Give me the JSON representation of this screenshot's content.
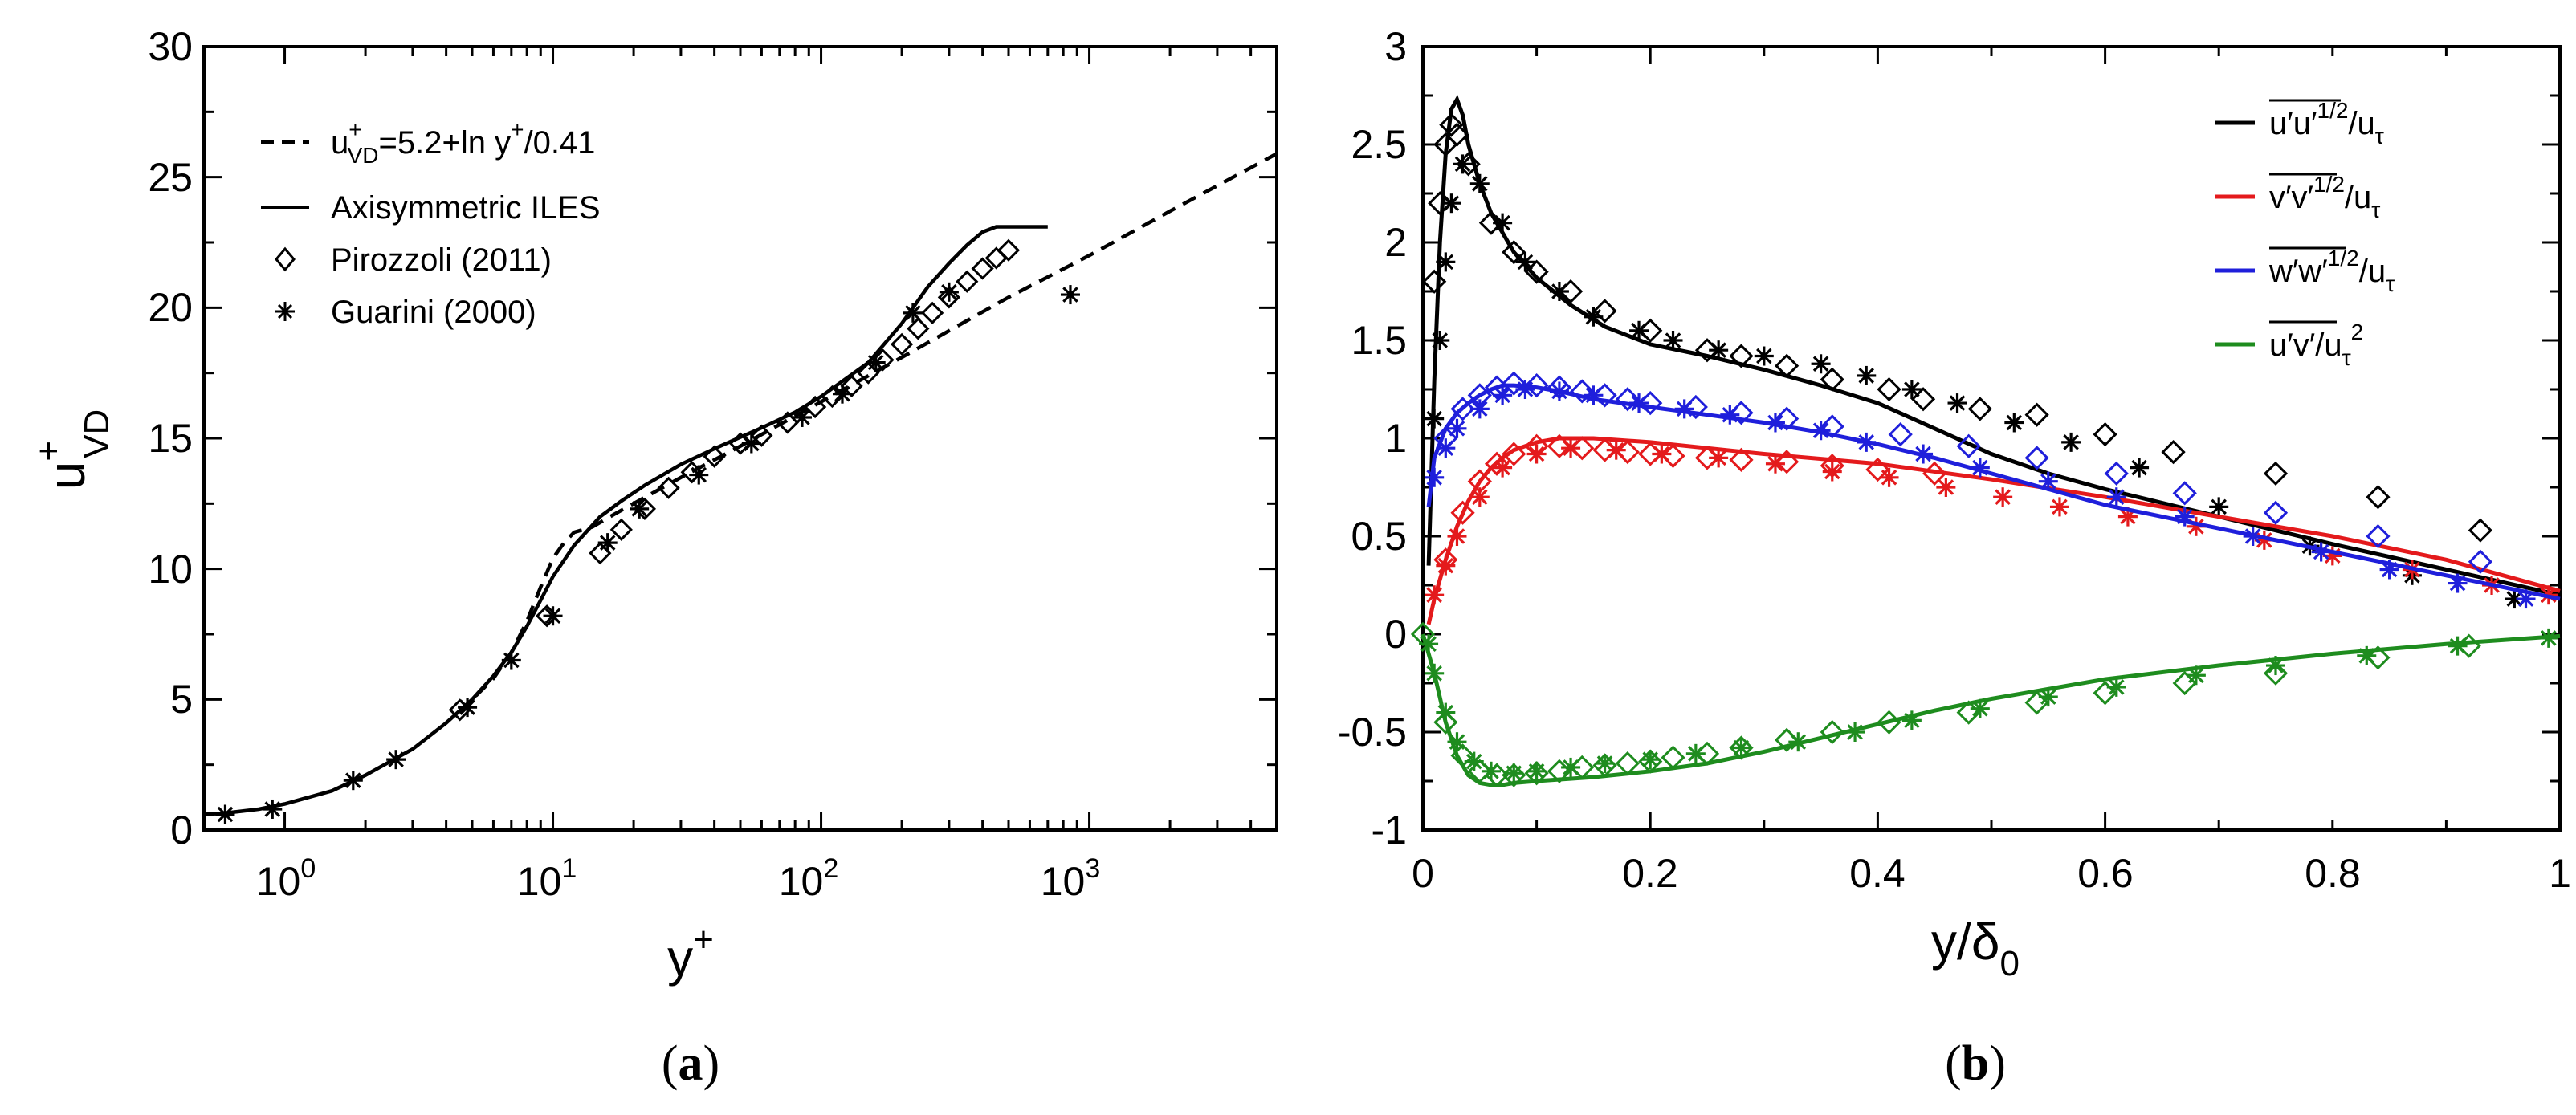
{
  "chart_data": [
    {
      "type": "scatter",
      "panel_label": "a",
      "xscale": "log",
      "xlim": [
        0.5,
        5000
      ],
      "ylim": [
        0,
        30
      ],
      "xlabel": "y",
      "xlabel_sup": "+",
      "ylabel": "u",
      "ylabel_sup": "+",
      "ylabel_sub": "VD",
      "xticks": [
        {
          "value": 1,
          "base": "10",
          "exp": "0"
        },
        {
          "value": 10,
          "base": "10",
          "exp": "1"
        },
        {
          "value": 100,
          "base": "10",
          "exp": "2"
        },
        {
          "value": 1000,
          "base": "10",
          "exp": "3"
        }
      ],
      "yticks": [
        "0",
        "5",
        "10",
        "15",
        "20",
        "25",
        "30"
      ],
      "legend_position": "top-left",
      "legend": [
        {
          "style": "dashed",
          "text_parts": [
            "u",
            "+",
            "VD",
            "=5.2+ln y",
            "+",
            "/0.41"
          ]
        },
        {
          "style": "solid",
          "text": "Axisymmetric ILES"
        },
        {
          "style": "diamond",
          "text": "Pirozzoli (2011)"
        },
        {
          "style": "star",
          "text": "Guarini (2000)"
        }
      ],
      "series": [
        {
          "name": "log-law composite",
          "style": "dashed",
          "x": [
            4.5,
            5,
            6,
            7,
            8,
            9,
            10,
            11,
            12,
            14,
            17,
            20,
            30,
            50,
            100,
            200,
            500,
            1000,
            2000,
            5000
          ],
          "y": [
            4.5,
            5.0,
            5.8,
            6.8,
            8.0,
            9.3,
            10.4,
            11.0,
            11.4,
            11.6,
            12.1,
            12.5,
            13.5,
            14.7,
            16.4,
            18.1,
            20.4,
            22.0,
            23.7,
            25.9
          ]
        },
        {
          "name": "Axisymmetric ILES",
          "style": "solid",
          "x": [
            0.5,
            0.6,
            0.8,
            1,
            1.5,
            2,
            3,
            4,
            5,
            6,
            7,
            8,
            9,
            10,
            12,
            15,
            18,
            22,
            30,
            40,
            60,
            80,
            100,
            150,
            200,
            250,
            300,
            350,
            400,
            450,
            700
          ],
          "y": [
            0.6,
            0.65,
            0.8,
            1.0,
            1.5,
            2.1,
            3.1,
            4.1,
            5.0,
            5.9,
            6.8,
            7.8,
            8.8,
            9.7,
            10.9,
            12.0,
            12.6,
            13.2,
            14.0,
            14.6,
            15.4,
            16.0,
            16.6,
            17.9,
            19.4,
            20.8,
            21.7,
            22.4,
            22.9,
            23.1,
            23.1
          ]
        },
        {
          "name": "Pirozzoli (2011)",
          "style": "diamond",
          "x": [
            4.5,
            9.5,
            15,
            18,
            22,
            27,
            33,
            40,
            50,
            60,
            75,
            95,
            110,
            130,
            150,
            170,
            200,
            230,
            260,
            300,
            350,
            400,
            450,
            500
          ],
          "y": [
            4.6,
            8.2,
            10.6,
            11.5,
            12.3,
            13.1,
            13.7,
            14.3,
            14.8,
            15.1,
            15.6,
            16.2,
            16.6,
            17.0,
            17.5,
            18.0,
            18.6,
            19.2,
            19.8,
            20.4,
            21.0,
            21.5,
            21.9,
            22.2
          ]
        },
        {
          "name": "Guarini (2000)",
          "style": "star",
          "x": [
            0.6,
            0.9,
            1.8,
            2.6,
            4.8,
            7,
            10,
            16,
            21,
            35,
            55,
            85,
            120,
            160,
            220,
            300,
            850
          ],
          "y": [
            0.6,
            0.8,
            1.9,
            2.7,
            4.7,
            6.5,
            8.2,
            11.0,
            12.3,
            13.6,
            14.8,
            15.8,
            16.7,
            17.9,
            19.8,
            20.6,
            20.5
          ]
        }
      ]
    },
    {
      "type": "scatter",
      "panel_label": "b",
      "xlim": [
        0,
        1
      ],
      "ylim": [
        -1,
        3
      ],
      "xlabel": "y/δ",
      "xlabel_sub": "0",
      "xticks": [
        "0",
        "0.2",
        "0.4",
        "0.6",
        "0.8",
        "1"
      ],
      "yticks": [
        "-1",
        "-0.5",
        "0",
        "0.5",
        "1",
        "1.5",
        "2",
        "2.5",
        "3"
      ],
      "legend_position": "top-right",
      "legend": [
        {
          "color": "#000000",
          "over": "u′u′",
          "sup": "1/2",
          "tail": "/u",
          "sub": "τ"
        },
        {
          "color": "#e41a1c",
          "over": "v′v′",
          "sup": "1/2",
          "tail": "/u",
          "sub": "τ"
        },
        {
          "color": "#1f1fdb",
          "over": "w′w′",
          "sup": "1/2",
          "tail": "/u",
          "sub": "τ"
        },
        {
          "color": "#1e8c1e",
          "over": "u′v′",
          "sup": "2",
          "tail": "/u",
          "sub": "τ"
        }
      ],
      "series": [
        {
          "name": "u_rms",
          "color": "#000000",
          "line_x": [
            0.005,
            0.01,
            0.015,
            0.02,
            0.025,
            0.03,
            0.035,
            0.04,
            0.05,
            0.06,
            0.08,
            0.1,
            0.13,
            0.16,
            0.2,
            0.25,
            0.3,
            0.35,
            0.4,
            0.45,
            0.5,
            0.55,
            0.6,
            0.7,
            0.8,
            0.9,
            1.0
          ],
          "line_y": [
            0.35,
            1.3,
            2.0,
            2.45,
            2.68,
            2.73,
            2.65,
            2.5,
            2.3,
            2.15,
            1.95,
            1.82,
            1.68,
            1.57,
            1.48,
            1.42,
            1.35,
            1.27,
            1.18,
            1.05,
            0.92,
            0.82,
            0.74,
            0.6,
            0.46,
            0.33,
            0.2
          ],
          "diamonds_x": [
            0.01,
            0.015,
            0.02,
            0.025,
            0.03,
            0.04,
            0.06,
            0.08,
            0.1,
            0.13,
            0.16,
            0.2,
            0.25,
            0.28,
            0.32,
            0.36,
            0.41,
            0.44,
            0.49,
            0.54,
            0.6,
            0.66,
            0.75,
            0.84,
            0.93
          ],
          "diamonds_y": [
            1.8,
            2.2,
            2.5,
            2.6,
            2.55,
            2.4,
            2.1,
            1.95,
            1.85,
            1.75,
            1.65,
            1.55,
            1.45,
            1.42,
            1.37,
            1.3,
            1.25,
            1.2,
            1.15,
            1.12,
            1.02,
            0.93,
            0.82,
            0.7,
            0.53
          ],
          "stars_x": [
            0.01,
            0.015,
            0.02,
            0.025,
            0.035,
            0.05,
            0.07,
            0.09,
            0.12,
            0.15,
            0.19,
            0.22,
            0.26,
            0.3,
            0.35,
            0.39,
            0.43,
            0.47,
            0.52,
            0.57,
            0.63,
            0.7,
            0.78,
            0.87,
            0.96
          ],
          "stars_y": [
            1.1,
            1.5,
            1.9,
            2.2,
            2.4,
            2.3,
            2.1,
            1.9,
            1.75,
            1.62,
            1.55,
            1.5,
            1.45,
            1.42,
            1.38,
            1.32,
            1.25,
            1.18,
            1.08,
            0.98,
            0.85,
            0.65,
            0.45,
            0.3,
            0.18
          ]
        },
        {
          "name": "v_rms",
          "color": "#e41a1c",
          "line_x": [
            0.005,
            0.01,
            0.02,
            0.03,
            0.04,
            0.05,
            0.06,
            0.07,
            0.08,
            0.1,
            0.12,
            0.15,
            0.2,
            0.25,
            0.3,
            0.4,
            0.5,
            0.6,
            0.7,
            0.8,
            0.9,
            1.0
          ],
          "line_y": [
            0.05,
            0.18,
            0.38,
            0.55,
            0.68,
            0.78,
            0.85,
            0.9,
            0.94,
            0.98,
            1.0,
            1.0,
            0.98,
            0.95,
            0.92,
            0.87,
            0.79,
            0.7,
            0.6,
            0.5,
            0.38,
            0.22
          ],
          "diamonds_x": [
            0.02,
            0.035,
            0.05,
            0.065,
            0.08,
            0.1,
            0.12,
            0.14,
            0.16,
            0.18,
            0.2,
            0.22,
            0.25,
            0.28,
            0.32,
            0.36,
            0.4,
            0.45
          ],
          "diamonds_y": [
            0.38,
            0.62,
            0.78,
            0.87,
            0.92,
            0.96,
            0.96,
            0.95,
            0.94,
            0.93,
            0.92,
            0.91,
            0.9,
            0.89,
            0.88,
            0.86,
            0.84,
            0.82
          ],
          "stars_x": [
            0.01,
            0.02,
            0.03,
            0.05,
            0.07,
            0.1,
            0.13,
            0.17,
            0.21,
            0.26,
            0.31,
            0.36,
            0.41,
            0.46,
            0.51,
            0.56,
            0.62,
            0.68,
            0.74,
            0.8,
            0.87,
            0.94,
            0.99
          ],
          "stars_y": [
            0.2,
            0.35,
            0.5,
            0.7,
            0.85,
            0.92,
            0.95,
            0.94,
            0.92,
            0.9,
            0.87,
            0.83,
            0.8,
            0.75,
            0.7,
            0.65,
            0.6,
            0.55,
            0.48,
            0.4,
            0.33,
            0.25,
            0.2
          ]
        },
        {
          "name": "w_rms",
          "color": "#1f1fdb",
          "line_x": [
            0.005,
            0.01,
            0.02,
            0.03,
            0.04,
            0.05,
            0.06,
            0.07,
            0.08,
            0.1,
            0.12,
            0.15,
            0.2,
            0.25,
            0.3,
            0.35,
            0.4,
            0.45,
            0.5,
            0.55,
            0.6,
            0.7,
            0.8,
            0.9,
            1.0
          ],
          "line_y": [
            0.65,
            0.9,
            1.05,
            1.13,
            1.18,
            1.22,
            1.25,
            1.27,
            1.27,
            1.26,
            1.24,
            1.2,
            1.16,
            1.12,
            1.08,
            1.03,
            0.97,
            0.9,
            0.82,
            0.74,
            0.66,
            0.54,
            0.42,
            0.3,
            0.18
          ],
          "diamonds_x": [
            0.02,
            0.035,
            0.05,
            0.065,
            0.08,
            0.1,
            0.12,
            0.14,
            0.16,
            0.18,
            0.2,
            0.24,
            0.28,
            0.32,
            0.36,
            0.42,
            0.48,
            0.54,
            0.61,
            0.67,
            0.75,
            0.84,
            0.93
          ],
          "diamonds_y": [
            1.0,
            1.15,
            1.22,
            1.26,
            1.28,
            1.27,
            1.26,
            1.24,
            1.22,
            1.2,
            1.18,
            1.16,
            1.13,
            1.1,
            1.06,
            1.02,
            0.96,
            0.9,
            0.82,
            0.72,
            0.62,
            0.5,
            0.37
          ],
          "stars_x": [
            0.01,
            0.02,
            0.03,
            0.05,
            0.07,
            0.09,
            0.12,
            0.15,
            0.19,
            0.23,
            0.27,
            0.31,
            0.35,
            0.39,
            0.44,
            0.49,
            0.55,
            0.61,
            0.67,
            0.73,
            0.79,
            0.85,
            0.91,
            0.97
          ],
          "stars_y": [
            0.8,
            0.95,
            1.05,
            1.15,
            1.22,
            1.25,
            1.24,
            1.22,
            1.18,
            1.15,
            1.12,
            1.08,
            1.04,
            0.98,
            0.92,
            0.85,
            0.78,
            0.7,
            0.6,
            0.5,
            0.42,
            0.33,
            0.26,
            0.18
          ]
        },
        {
          "name": "uv",
          "color": "#1e8c1e",
          "line_x": [
            0.0,
            0.01,
            0.02,
            0.03,
            0.04,
            0.05,
            0.06,
            0.07,
            0.08,
            0.1,
            0.15,
            0.2,
            0.25,
            0.3,
            0.35,
            0.4,
            0.45,
            0.5,
            0.6,
            0.7,
            0.8,
            0.9,
            1.0
          ],
          "line_y": [
            0.0,
            -0.2,
            -0.45,
            -0.62,
            -0.72,
            -0.76,
            -0.77,
            -0.77,
            -0.76,
            -0.75,
            -0.73,
            -0.7,
            -0.66,
            -0.6,
            -0.53,
            -0.46,
            -0.39,
            -0.33,
            -0.23,
            -0.16,
            -0.1,
            -0.05,
            -0.01
          ],
          "diamonds_x": [
            0.0,
            0.02,
            0.035,
            0.05,
            0.065,
            0.08,
            0.1,
            0.12,
            0.14,
            0.16,
            0.18,
            0.2,
            0.22,
            0.25,
            0.28,
            0.32,
            0.36,
            0.41,
            0.48,
            0.54,
            0.6,
            0.67,
            0.75,
            0.84,
            0.92
          ],
          "diamonds_y": [
            0.0,
            -0.45,
            -0.62,
            -0.7,
            -0.72,
            -0.72,
            -0.71,
            -0.7,
            -0.68,
            -0.67,
            -0.66,
            -0.65,
            -0.63,
            -0.61,
            -0.58,
            -0.54,
            -0.5,
            -0.45,
            -0.4,
            -0.35,
            -0.3,
            -0.25,
            -0.2,
            -0.12,
            -0.06
          ],
          "stars_x": [
            0.005,
            0.01,
            0.02,
            0.03,
            0.045,
            0.06,
            0.08,
            0.1,
            0.13,
            0.16,
            0.2,
            0.24,
            0.28,
            0.33,
            0.38,
            0.43,
            0.49,
            0.55,
            0.61,
            0.68,
            0.75,
            0.83,
            0.91,
            0.99
          ],
          "stars_y": [
            -0.05,
            -0.2,
            -0.4,
            -0.55,
            -0.65,
            -0.7,
            -0.71,
            -0.7,
            -0.68,
            -0.66,
            -0.64,
            -0.61,
            -0.58,
            -0.55,
            -0.5,
            -0.44,
            -0.38,
            -0.32,
            -0.27,
            -0.21,
            -0.16,
            -0.11,
            -0.06,
            -0.02
          ]
        }
      ]
    }
  ]
}
